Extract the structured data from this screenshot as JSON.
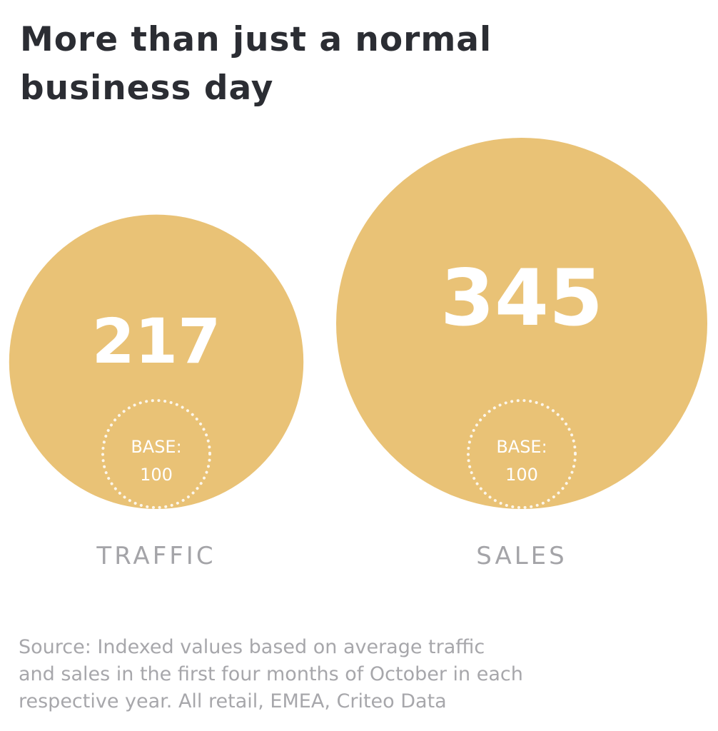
{
  "title": {
    "line1": "More than just a normal",
    "line2": "business day"
  },
  "chart_data": {
    "type": "bubble",
    "categories": [
      "TRAFFIC",
      "SALES"
    ],
    "values": [
      217,
      345
    ],
    "base_label_line1": "BASE:",
    "base_value": 100,
    "base_label_line2": "100"
  },
  "colors": {
    "bubble": "#e9c276",
    "value_text": "#ffffff",
    "category_text": "#a4a4a8",
    "title_text": "#2b2d33",
    "source_text": "#a7a7ab"
  },
  "source": {
    "line1": "Source: Indexed values based on average traffic",
    "line2": "and sales in the first four months of October in each",
    "line3": "respective year. All retail, EMEA, Criteo Data"
  }
}
